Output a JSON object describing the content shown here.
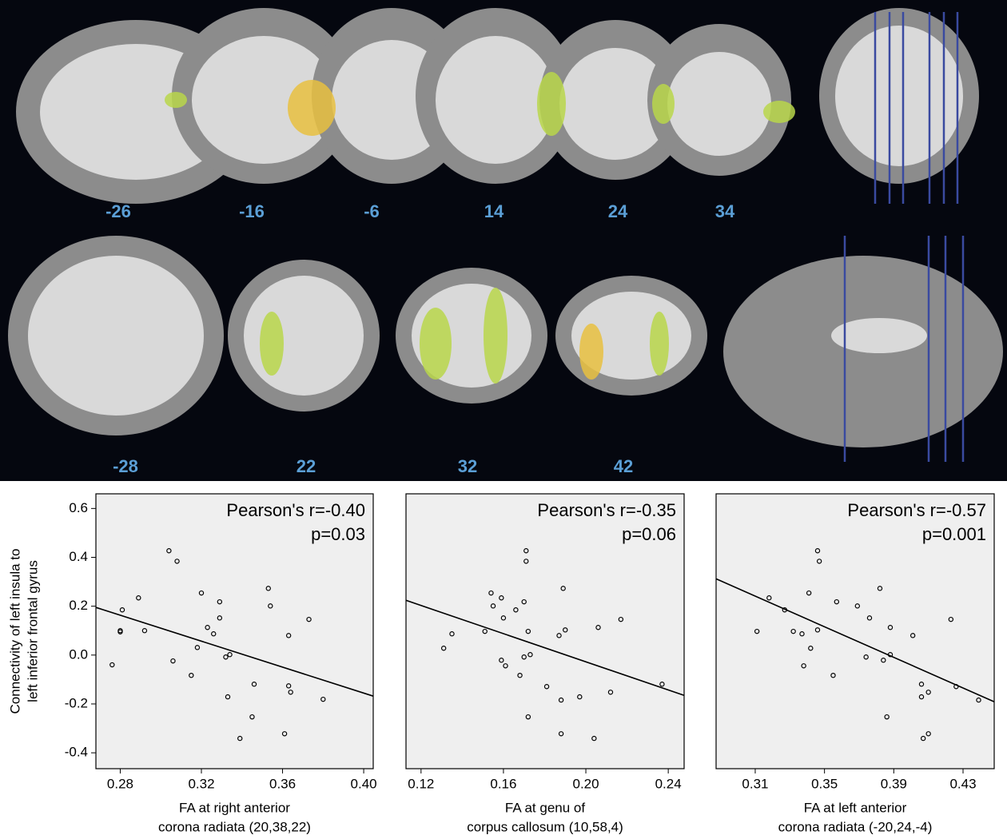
{
  "brain": {
    "sagittal_labels": [
      "-26",
      "-16",
      "-6",
      "14",
      "24",
      "34"
    ],
    "coronal_labels": [
      "-28",
      "22",
      "32",
      "42"
    ]
  },
  "chart_data": [
    {
      "type": "scatter",
      "annotations": [
        "Pearson's r=-0.40",
        "p=0.03"
      ],
      "x_label": [
        "FA at right anterior",
        "corona radiata (20,38,22)"
      ],
      "y_label": [
        "Connectivity of left insula to",
        "left inferior frontal gyrus"
      ],
      "x": [
        0.276,
        0.28,
        0.28,
        0.281,
        0.289,
        0.292,
        0.304,
        0.308,
        0.306,
        0.315,
        0.318,
        0.32,
        0.323,
        0.326,
        0.329,
        0.329,
        0.332,
        0.334,
        0.333,
        0.346,
        0.345,
        0.339,
        0.353,
        0.354,
        0.363,
        0.361,
        0.363,
        0.364,
        0.373,
        0.38
      ],
      "values": [
        -0.04,
        0.1,
        0.095,
        0.185,
        0.234,
        0.1,
        0.427,
        0.384,
        -0.024,
        -0.083,
        0.031,
        0.254,
        0.113,
        0.087,
        0.218,
        0.152,
        -0.008,
        0.002,
        -0.171,
        -0.119,
        -0.253,
        -0.341,
        0.273,
        0.201,
        0.08,
        -0.322,
        -0.126,
        -0.152,
        0.146,
        -0.181
      ],
      "fit_line": {
        "x": [
          0.268,
          0.4047
        ],
        "y": [
          0.195,
          -0.168
        ]
      },
      "marker_color": "#000000",
      "xlim": [
        0.268,
        0.4047
      ],
      "ylim": [
        -0.465,
        0.66
      ],
      "xticks": [
        0.28,
        0.32,
        0.36,
        {
          "value": 0.4,
          "label": "0.40"
        }
      ],
      "yticks": [
        -0.4,
        -0.2,
        {
          "value": 0,
          "label": "0.0"
        },
        0.2,
        0.4,
        0.6
      ]
    },
    {
      "type": "scatter",
      "annotations": [
        "Pearson's r=-0.35",
        "p=0.06"
      ],
      "x_label": [
        "FA at genu of",
        "corpus callosum (10,58,4)"
      ],
      "x": [
        0.131,
        0.135,
        0.151,
        0.154,
        0.155,
        0.159,
        0.16,
        0.159,
        0.161,
        0.166,
        0.168,
        0.17,
        0.17,
        0.171,
        0.171,
        0.172,
        0.173,
        0.172,
        0.181,
        0.187,
        0.188,
        0.189,
        0.19,
        0.188,
        0.197,
        0.204,
        0.206,
        0.212,
        0.217,
        0.237
      ],
      "values": [
        0.028,
        0.087,
        0.097,
        0.254,
        0.201,
        0.234,
        0.152,
        -0.021,
        -0.044,
        0.185,
        -0.083,
        -0.008,
        0.218,
        0.384,
        0.427,
        0.097,
        0.002,
        -0.253,
        -0.129,
        0.08,
        -0.184,
        0.273,
        0.103,
        -0.322,
        -0.171,
        -0.341,
        0.113,
        -0.152,
        0.146,
        -0.119
      ],
      "fit_line": {
        "x": [
          0.1127,
          0.2477
        ],
        "y": [
          0.224,
          -0.165
        ]
      },
      "marker_color": "#000000",
      "xlim": [
        0.1127,
        0.2477
      ],
      "ylim": [
        -0.465,
        0.66
      ],
      "xticks": [
        0.12,
        0.16,
        {
          "value": 0.2,
          "label": "0.20"
        },
        0.24
      ]
    },
    {
      "type": "scatter",
      "annotations": [
        "Pearson's r=-0.57",
        "p=0.001"
      ],
      "x_label": [
        "FA at left anterior",
        "corona radiata (-20,24,-4)"
      ],
      "x": [
        0.311,
        0.318,
        0.327,
        0.332,
        0.337,
        0.338,
        0.341,
        0.342,
        0.346,
        0.347,
        0.346,
        0.355,
        0.357,
        0.369,
        0.374,
        0.376,
        0.382,
        0.384,
        0.386,
        0.388,
        0.388,
        0.401,
        0.406,
        0.406,
        0.407,
        0.41,
        0.41,
        0.423,
        0.426,
        0.439
      ],
      "values": [
        0.097,
        0.234,
        0.185,
        0.097,
        0.087,
        -0.044,
        0.254,
        0.028,
        0.427,
        0.384,
        0.103,
        -0.083,
        0.218,
        0.201,
        -0.008,
        0.152,
        0.273,
        -0.021,
        -0.253,
        0.113,
        0.002,
        0.08,
        -0.119,
        -0.171,
        -0.341,
        -0.152,
        -0.322,
        0.146,
        -0.129,
        -0.184
      ],
      "fit_line": {
        "x": [
          0.2874,
          0.448
        ],
        "y": [
          0.312,
          -0.191
        ]
      },
      "marker_color": "#000000",
      "xlim": [
        0.2874,
        0.448
      ],
      "ylim": [
        -0.465,
        0.66
      ],
      "xticks": [
        0.31,
        0.35,
        0.39,
        0.43
      ]
    }
  ]
}
